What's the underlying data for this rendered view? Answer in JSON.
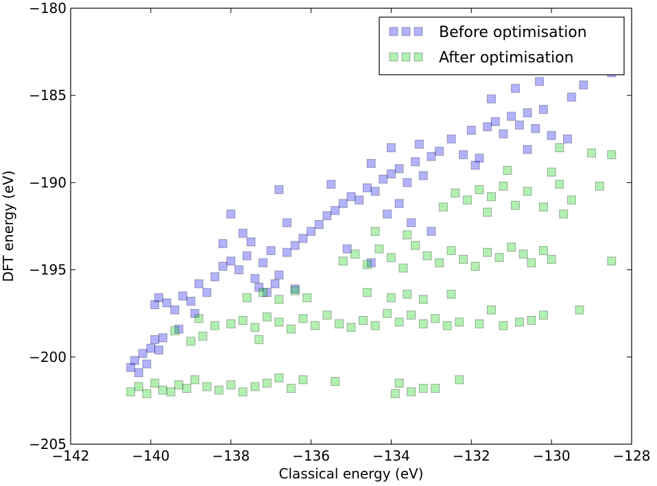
{
  "chart_data": {
    "type": "scatter",
    "title": "",
    "xlabel": "Classical energy (eV)",
    "ylabel": "DFT energy (eV)",
    "xlim": [
      -142,
      -128
    ],
    "ylim": [
      -205,
      -180
    ],
    "xticks": [
      -142,
      -140,
      -138,
      -136,
      -134,
      -132,
      -130,
      -128
    ],
    "yticks": [
      -205,
      -200,
      -195,
      -190,
      -185,
      -180
    ],
    "xtick_labels": [
      "−142",
      "−140",
      "−138",
      "−136",
      "−134",
      "−132",
      "−130",
      "−128"
    ],
    "ytick_labels": [
      "−205",
      "−200",
      "−195",
      "−190",
      "−185",
      "−180"
    ],
    "grid": false,
    "legend_position": "top-right",
    "series": [
      {
        "name": "Before optimisation",
        "color": "#0000ff",
        "marker": "square",
        "points": [
          [
            -140.5,
            -200.6
          ],
          [
            -140.4,
            -200.2
          ],
          [
            -140.3,
            -200.9
          ],
          [
            -140.2,
            -199.8
          ],
          [
            -140.1,
            -200.4
          ],
          [
            -140.0,
            -199.5
          ],
          [
            -139.9,
            -199.0
          ],
          [
            -139.8,
            -199.6
          ],
          [
            -139.7,
            -198.9
          ],
          [
            -139.9,
            -197.0
          ],
          [
            -139.8,
            -196.6
          ],
          [
            -139.6,
            -196.9
          ],
          [
            -139.4,
            -197.3
          ],
          [
            -139.2,
            -196.5
          ],
          [
            -139.0,
            -196.8
          ],
          [
            -138.8,
            -195.8
          ],
          [
            -138.6,
            -196.3
          ],
          [
            -138.4,
            -195.4
          ],
          [
            -138.2,
            -194.8
          ],
          [
            -138.0,
            -194.5
          ],
          [
            -137.8,
            -195.0
          ],
          [
            -137.6,
            -194.2
          ],
          [
            -137.4,
            -195.5
          ],
          [
            -137.2,
            -194.6
          ],
          [
            -137.0,
            -193.9
          ],
          [
            -136.8,
            -195.3
          ],
          [
            -136.6,
            -194.0
          ],
          [
            -136.4,
            -193.6
          ],
          [
            -136.2,
            -193.2
          ],
          [
            -136.0,
            -192.8
          ],
          [
            -137.5,
            -193.4
          ],
          [
            -137.3,
            -196.0
          ],
          [
            -136.9,
            -195.8
          ],
          [
            -138.2,
            -193.5
          ],
          [
            -137.7,
            -192.9
          ],
          [
            -136.6,
            -192.3
          ],
          [
            -135.8,
            -192.4
          ],
          [
            -135.6,
            -191.9
          ],
          [
            -135.4,
            -191.6
          ],
          [
            -135.2,
            -191.2
          ],
          [
            -135.0,
            -190.8
          ],
          [
            -134.8,
            -191.0
          ],
          [
            -134.6,
            -190.3
          ],
          [
            -134.4,
            -190.5
          ],
          [
            -134.2,
            -189.8
          ],
          [
            -134.0,
            -189.5
          ],
          [
            -133.8,
            -189.2
          ],
          [
            -133.6,
            -190.0
          ],
          [
            -133.4,
            -188.8
          ],
          [
            -133.2,
            -189.6
          ],
          [
            -133.0,
            -188.5
          ],
          [
            -133.8,
            -191.2
          ],
          [
            -134.1,
            -191.8
          ],
          [
            -133.5,
            -192.3
          ],
          [
            -134.5,
            -188.9
          ],
          [
            -133.3,
            -187.8
          ],
          [
            -134.0,
            -188.0
          ],
          [
            -132.8,
            -188.2
          ],
          [
            -132.5,
            -187.5
          ],
          [
            -132.2,
            -188.4
          ],
          [
            -132.0,
            -187.0
          ],
          [
            -131.8,
            -188.6
          ],
          [
            -131.6,
            -186.8
          ],
          [
            -131.4,
            -186.5
          ],
          [
            -131.2,
            -187.2
          ],
          [
            -131.0,
            -186.2
          ],
          [
            -130.8,
            -186.7
          ],
          [
            -130.6,
            -186.0
          ],
          [
            -130.4,
            -186.9
          ],
          [
            -130.2,
            -185.8
          ],
          [
            -130.0,
            -187.3
          ],
          [
            -131.5,
            -185.2
          ],
          [
            -130.9,
            -184.6
          ],
          [
            -130.3,
            -184.2
          ],
          [
            -129.5,
            -185.1
          ],
          [
            -129.2,
            -184.4
          ],
          [
            -128.5,
            -183.7
          ],
          [
            -129.6,
            -187.5
          ],
          [
            -130.6,
            -188.1
          ],
          [
            -131.9,
            -189.0
          ],
          [
            -133.0,
            -192.8
          ],
          [
            -136.4,
            -196.1
          ],
          [
            -137.1,
            -196.3
          ],
          [
            -138.9,
            -197.5
          ],
          [
            -139.3,
            -198.4
          ],
          [
            -138.0,
            -191.8
          ],
          [
            -136.8,
            -190.4
          ],
          [
            -135.5,
            -190.1
          ],
          [
            -135.1,
            -193.8
          ],
          [
            -134.5,
            -194.6
          ]
        ]
      },
      {
        "name": "After optimisation",
        "color": "#00cc00",
        "marker": "square",
        "points": [
          [
            -140.5,
            -202.0
          ],
          [
            -140.3,
            -201.7
          ],
          [
            -140.1,
            -202.1
          ],
          [
            -139.9,
            -201.5
          ],
          [
            -139.7,
            -201.9
          ],
          [
            -139.5,
            -202.0
          ],
          [
            -139.3,
            -201.6
          ],
          [
            -139.1,
            -201.8
          ],
          [
            -138.9,
            -201.3
          ],
          [
            -138.6,
            -201.7
          ],
          [
            -138.3,
            -201.9
          ],
          [
            -138.0,
            -201.6
          ],
          [
            -137.7,
            -202.0
          ],
          [
            -137.4,
            -201.7
          ],
          [
            -137.1,
            -201.5
          ],
          [
            -136.8,
            -201.2
          ],
          [
            -136.5,
            -201.8
          ],
          [
            -136.2,
            -201.3
          ],
          [
            -135.4,
            -201.4
          ],
          [
            -133.8,
            -201.5
          ],
          [
            -133.5,
            -202.0
          ],
          [
            -133.2,
            -201.8
          ],
          [
            -132.9,
            -201.8
          ],
          [
            -132.3,
            -201.3
          ],
          [
            -133.9,
            -202.1
          ],
          [
            -138.0,
            -198.1
          ],
          [
            -137.7,
            -197.9
          ],
          [
            -137.4,
            -198.3
          ],
          [
            -137.1,
            -197.7
          ],
          [
            -136.8,
            -198.0
          ],
          [
            -136.5,
            -198.4
          ],
          [
            -136.2,
            -197.8
          ],
          [
            -135.9,
            -198.2
          ],
          [
            -135.6,
            -197.6
          ],
          [
            -135.3,
            -198.1
          ],
          [
            -135.0,
            -198.3
          ],
          [
            -134.7,
            -197.9
          ],
          [
            -134.4,
            -198.2
          ],
          [
            -134.1,
            -197.5
          ],
          [
            -133.8,
            -198.0
          ],
          [
            -133.5,
            -197.6
          ],
          [
            -133.2,
            -198.1
          ],
          [
            -132.9,
            -197.8
          ],
          [
            -132.6,
            -198.2
          ],
          [
            -132.3,
            -198.0
          ],
          [
            -131.8,
            -198.1
          ],
          [
            -131.5,
            -197.3
          ],
          [
            -131.2,
            -198.2
          ],
          [
            -130.8,
            -198.0
          ],
          [
            -130.5,
            -197.9
          ],
          [
            -129.3,
            -197.3
          ],
          [
            -130.2,
            -197.6
          ],
          [
            -137.6,
            -196.6
          ],
          [
            -137.2,
            -196.3
          ],
          [
            -136.8,
            -196.7
          ],
          [
            -136.4,
            -196.2
          ],
          [
            -136.1,
            -196.6
          ],
          [
            -134.6,
            -196.3
          ],
          [
            -134.0,
            -196.6
          ],
          [
            -133.6,
            -196.4
          ],
          [
            -133.2,
            -196.7
          ],
          [
            -132.5,
            -196.4
          ],
          [
            -135.2,
            -194.5
          ],
          [
            -134.9,
            -194.1
          ],
          [
            -134.6,
            -194.7
          ],
          [
            -134.3,
            -193.8
          ],
          [
            -134.0,
            -194.3
          ],
          [
            -133.7,
            -194.9
          ],
          [
            -133.4,
            -193.6
          ],
          [
            -133.1,
            -194.2
          ],
          [
            -132.8,
            -194.6
          ],
          [
            -132.5,
            -193.9
          ],
          [
            -132.2,
            -194.4
          ],
          [
            -131.9,
            -194.8
          ],
          [
            -131.6,
            -194.0
          ],
          [
            -131.3,
            -194.3
          ],
          [
            -131.0,
            -193.7
          ],
          [
            -130.7,
            -194.1
          ],
          [
            -130.5,
            -194.6
          ],
          [
            -130.2,
            -193.9
          ],
          [
            -130.0,
            -194.4
          ],
          [
            -128.5,
            -194.5
          ],
          [
            -133.6,
            -193.0
          ],
          [
            -134.4,
            -192.8
          ],
          [
            -132.4,
            -190.6
          ],
          [
            -132.1,
            -191.0
          ],
          [
            -131.8,
            -190.4
          ],
          [
            -131.5,
            -190.8
          ],
          [
            -131.2,
            -190.2
          ],
          [
            -130.9,
            -191.3
          ],
          [
            -130.6,
            -190.5
          ],
          [
            -130.2,
            -191.4
          ],
          [
            -129.8,
            -190.1
          ],
          [
            -129.5,
            -191.0
          ],
          [
            -128.8,
            -190.2
          ],
          [
            -128.5,
            -188.4
          ],
          [
            -130.0,
            -189.4
          ],
          [
            -131.1,
            -189.3
          ],
          [
            -131.6,
            -191.7
          ],
          [
            -129.7,
            -191.8
          ],
          [
            -132.7,
            -191.4
          ],
          [
            -139.0,
            -199.1
          ],
          [
            -138.7,
            -198.8
          ],
          [
            -138.4,
            -198.2
          ],
          [
            -139.4,
            -198.5
          ],
          [
            -138.8,
            -197.8
          ],
          [
            -137.3,
            -199.0
          ],
          [
            -129.0,
            -188.3
          ],
          [
            -129.8,
            -188.0
          ]
        ]
      }
    ]
  }
}
